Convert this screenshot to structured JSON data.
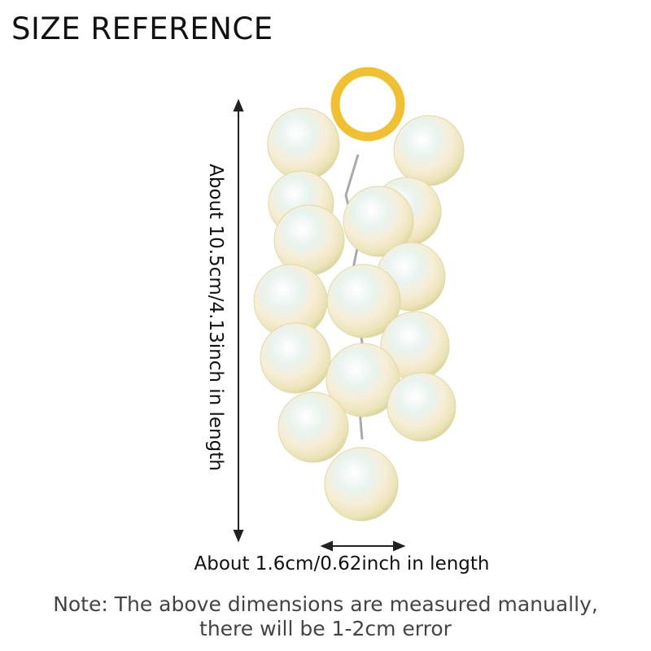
{
  "title": "SIZE REFERENCE",
  "length_label": "About 10.5cm/4.13inch in length",
  "width_label": "About 1.6cm/0.62inch in length",
  "note_line1": "Note: The above dimensions are measured manually,",
  "note_line2": "there will be 1-2cm error",
  "colors": {
    "ring": "#f0c030",
    "bead": "#f3f0d2",
    "text": "#111111",
    "note": "#444444"
  }
}
